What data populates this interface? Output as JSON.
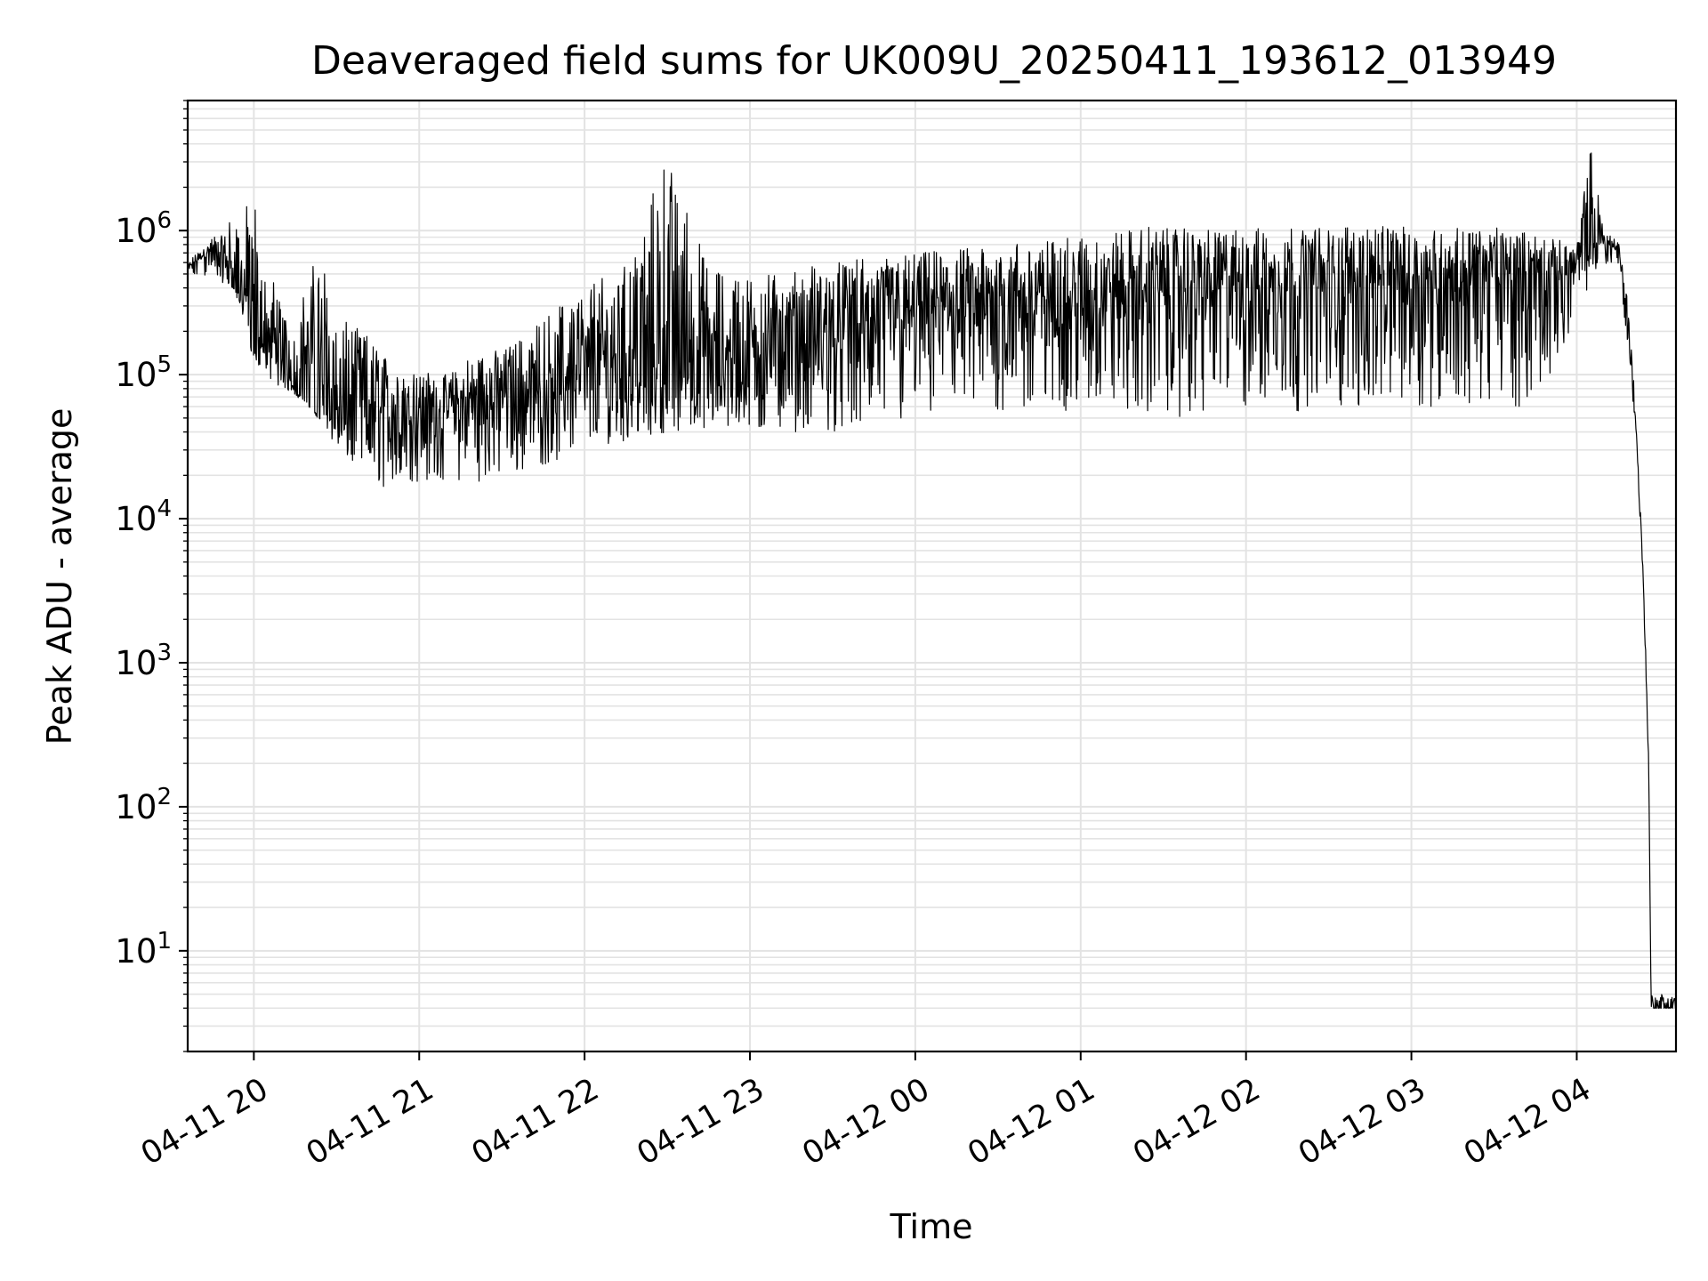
{
  "chart_data": {
    "type": "line",
    "title": "Deaveraged field sums for UK009U_20250411_193612_013949",
    "xlabel": "Time",
    "ylabel": "Peak ADU - average",
    "yscale": "log",
    "grid": "on (major and minor)",
    "xlim": [
      "2025-04-11 19:36",
      "2025-04-12 04:36"
    ],
    "ylim": [
      2,
      8000000
    ],
    "x_ticks": [
      "04-11 20",
      "04-11 21",
      "04-11 22",
      "04-11 23",
      "04-12 00",
      "04-12 01",
      "04-12 02",
      "04-12 03",
      "04-12 04"
    ],
    "y_ticks": [
      {
        "base": "10",
        "exp": "1",
        "value": 10
      },
      {
        "base": "10",
        "exp": "2",
        "value": 100
      },
      {
        "base": "10",
        "exp": "3",
        "value": 1000
      },
      {
        "base": "10",
        "exp": "4",
        "value": 10000
      },
      {
        "base": "10",
        "exp": "5",
        "value": 100000
      },
      {
        "base": "10",
        "exp": "6",
        "value": 1000000
      }
    ],
    "line_color": "#000000",
    "series": [
      {
        "x": [
          "19:36",
          "19:45",
          "19:50",
          "19:55",
          "20:00",
          "20:10",
          "20:15",
          "20:20",
          "20:25",
          "20:30",
          "20:40",
          "20:50",
          "21:00",
          "21:10",
          "21:20",
          "21:30",
          "21:40",
          "21:50",
          "22:00",
          "22:15",
          "22:30",
          "22:45",
          "23:00",
          "23:15",
          "23:30",
          "23:45",
          "00:00",
          "00:15",
          "00:30",
          "00:45",
          "01:00",
          "01:15",
          "01:30",
          "01:45",
          "02:00",
          "02:15",
          "02:30",
          "02:45",
          "03:00",
          "03:15",
          "03:30",
          "03:45",
          "04:00",
          "04:05",
          "04:10",
          "04:15",
          "04:18",
          "04:21",
          "04:24",
          "04:26",
          "04:27",
          "04:28",
          "04:36"
        ],
        "y_min": [
          450000,
          480000,
          420000,
          380000,
          200000,
          120000,
          80000,
          60000,
          45000,
          30000,
          20000,
          15000,
          18000,
          18000,
          18000,
          19000,
          22000,
          25000,
          30000,
          35000,
          40000,
          40000,
          40000,
          40000,
          40000,
          42000,
          45000,
          50000,
          52000,
          55000,
          55000,
          55000,
          50000,
          52000,
          55000,
          55000,
          58000,
          58000,
          60000,
          60000,
          60000,
          60000,
          250000,
          450000,
          600000,
          500000,
          200000,
          50000,
          4000,
          200,
          4,
          4,
          4
        ],
        "y_max": [
          600000,
          900000,
          1200000,
          1300000,
          1800000,
          300000,
          250000,
          500000,
          800000,
          250000,
          200000,
          120000,
          110000,
          100000,
          140000,
          150000,
          200000,
          300000,
          450000,
          600000,
          3500000,
          550000,
          500000,
          550000,
          600000,
          650000,
          700000,
          750000,
          800000,
          850000,
          900000,
          1000000,
          1100000,
          1000000,
          1050000,
          1050000,
          1050000,
          1100000,
          1050000,
          1050000,
          1050000,
          950000,
          800000,
          4000000,
          1000000,
          900000,
          400000,
          80000,
          5000,
          300,
          5,
          5,
          5
        ],
        "typical": [
          550000,
          700000,
          500000,
          300000,
          120000,
          80000,
          70000,
          60000,
          50000,
          45000,
          42000,
          42000,
          45000,
          48000,
          52000,
          55000,
          60000,
          65000,
          75000,
          80000,
          85000,
          90000,
          100000,
          120000,
          150000,
          170000,
          200000,
          220000,
          240000,
          260000,
          280000,
          300000,
          320000,
          330000,
          340000,
          350000,
          360000,
          370000,
          380000,
          390000,
          400000,
          400000,
          500000,
          700000,
          800000,
          700000,
          250000,
          60000,
          4500,
          250,
          4,
          4,
          4
        ]
      }
    ]
  }
}
